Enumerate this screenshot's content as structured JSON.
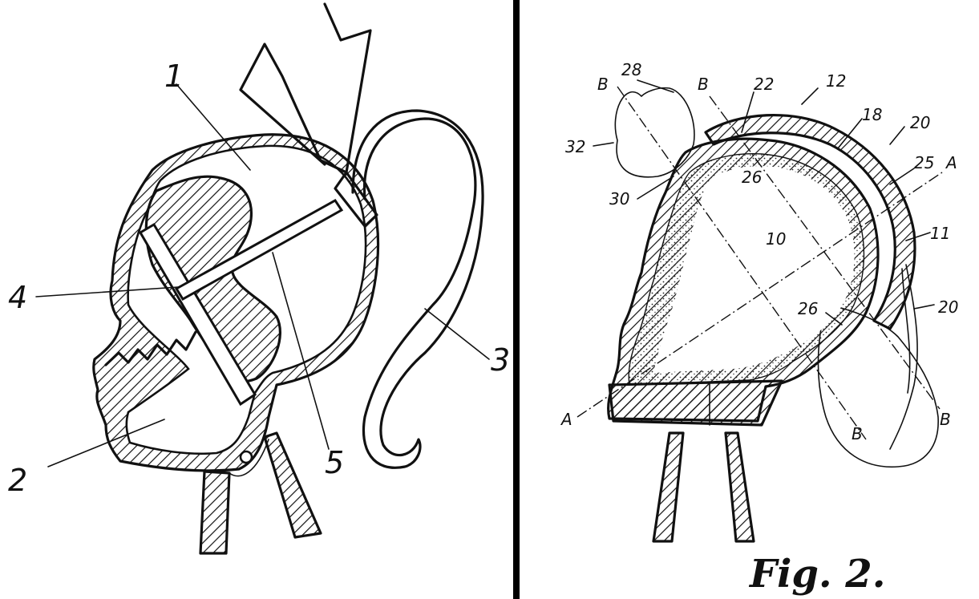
{
  "left_figure": {
    "labels": [
      "1",
      "2",
      "3",
      "4",
      "5"
    ]
  },
  "right_figure": {
    "labels": {
      "b_top_left": "B",
      "n28": "28",
      "b_top_mid": "B",
      "n22": "22",
      "n12": "12",
      "n18": "18",
      "n20_top": "20",
      "n32": "32",
      "n25": "25",
      "a_right": "A",
      "n26_top": "26",
      "n30": "30",
      "n10": "10",
      "n11": "11",
      "n26_bottom": "26",
      "n20_bottom": "20",
      "a_left": "A",
      "b_bottom_mid": "B",
      "b_bottom_right": "B"
    },
    "caption": "Fig. 2."
  }
}
